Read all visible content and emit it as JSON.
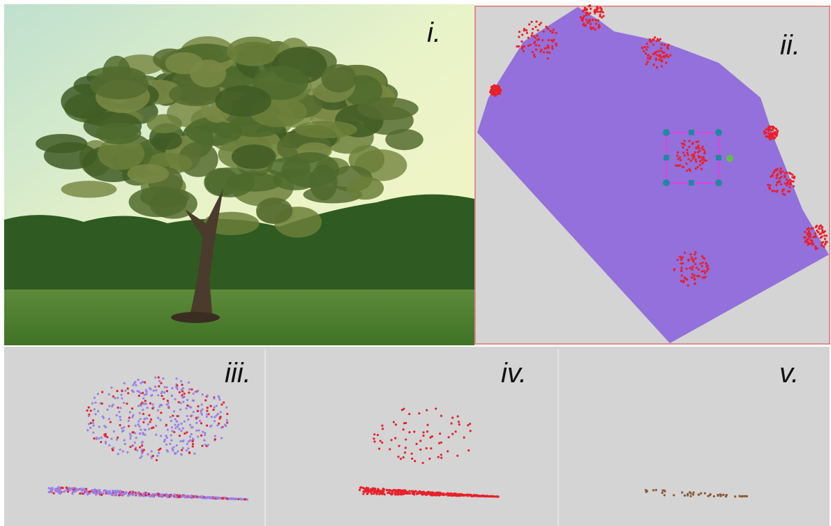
{
  "panels": [
    {
      "label": "i."
    },
    {
      "label": "ii."
    },
    {
      "label": "iii."
    },
    {
      "label": "iv."
    },
    {
      "label": "v."
    }
  ]
}
